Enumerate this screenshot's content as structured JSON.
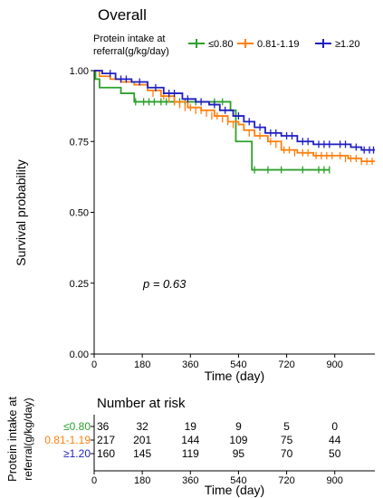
{
  "chart_data": {
    "type": "line",
    "title": "Overall",
    "legend": {
      "title_line1": "Protein intake at",
      "title_line2": "referral(g/kg/day)",
      "placement": "top"
    },
    "xlabel": "Time (day)",
    "ylabel": "Survival probability",
    "xlim": [
      0,
      1050
    ],
    "ylim": [
      0,
      1
    ],
    "xticks": [
      "0",
      "180",
      "360",
      "540",
      "720",
      "900"
    ],
    "yticks": [
      "0.00",
      "0.25",
      "0.50",
      "0.75",
      "1.00"
    ],
    "annotation": "p = 0.63",
    "series": [
      {
        "name": "≤0.80",
        "color": "#2ca02c",
        "steps": [
          [
            0,
            1.0
          ],
          [
            5,
            0.97
          ],
          [
            20,
            0.94
          ],
          [
            100,
            0.92
          ],
          [
            150,
            0.89
          ],
          [
            510,
            0.86
          ],
          [
            530,
            0.75
          ],
          [
            590,
            0.65
          ],
          [
            880,
            0.65
          ]
        ],
        "censors": [
          [
            155,
            0.89
          ],
          [
            185,
            0.89
          ],
          [
            205,
            0.89
          ],
          [
            225,
            0.89
          ],
          [
            250,
            0.89
          ],
          [
            270,
            0.89
          ],
          [
            300,
            0.89
          ],
          [
            320,
            0.89
          ],
          [
            340,
            0.89
          ],
          [
            380,
            0.89
          ],
          [
            450,
            0.89
          ],
          [
            480,
            0.89
          ],
          [
            600,
            0.65
          ],
          [
            650,
            0.65
          ],
          [
            700,
            0.65
          ],
          [
            780,
            0.65
          ],
          [
            840,
            0.65
          ],
          [
            860,
            0.65
          ],
          [
            880,
            0.65
          ]
        ]
      },
      {
        "name": "0.81-1.19",
        "color": "#ff7f0e",
        "steps": [
          [
            0,
            1.0
          ],
          [
            20,
            0.98
          ],
          [
            60,
            0.97
          ],
          [
            100,
            0.96
          ],
          [
            150,
            0.95
          ],
          [
            200,
            0.93
          ],
          [
            250,
            0.91
          ],
          [
            300,
            0.89
          ],
          [
            350,
            0.87
          ],
          [
            400,
            0.86
          ],
          [
            450,
            0.84
          ],
          [
            500,
            0.82
          ],
          [
            540,
            0.81
          ],
          [
            560,
            0.79
          ],
          [
            600,
            0.77
          ],
          [
            650,
            0.75
          ],
          [
            700,
            0.72
          ],
          [
            760,
            0.71
          ],
          [
            820,
            0.7
          ],
          [
            900,
            0.7
          ],
          [
            950,
            0.69
          ],
          [
            1000,
            0.68
          ],
          [
            1050,
            0.68
          ]
        ],
        "censors": [
          [
            220,
            0.92
          ],
          [
            260,
            0.91
          ],
          [
            280,
            0.9
          ],
          [
            300,
            0.89
          ],
          [
            320,
            0.88
          ],
          [
            340,
            0.87
          ],
          [
            360,
            0.87
          ],
          [
            380,
            0.86
          ],
          [
            400,
            0.86
          ],
          [
            420,
            0.85
          ],
          [
            440,
            0.84
          ],
          [
            460,
            0.84
          ],
          [
            480,
            0.83
          ],
          [
            500,
            0.82
          ],
          [
            520,
            0.81
          ],
          [
            580,
            0.78
          ],
          [
            620,
            0.77
          ],
          [
            660,
            0.75
          ],
          [
            680,
            0.74
          ],
          [
            710,
            0.72
          ],
          [
            730,
            0.72
          ],
          [
            750,
            0.71
          ],
          [
            780,
            0.71
          ],
          [
            800,
            0.71
          ],
          [
            830,
            0.7
          ],
          [
            850,
            0.7
          ],
          [
            870,
            0.7
          ],
          [
            890,
            0.7
          ],
          [
            920,
            0.7
          ],
          [
            940,
            0.69
          ],
          [
            960,
            0.69
          ],
          [
            980,
            0.69
          ],
          [
            1000,
            0.68
          ],
          [
            1020,
            0.68
          ],
          [
            1040,
            0.68
          ]
        ]
      },
      {
        "name": "≥1.20",
        "color": "#1f1fbf",
        "steps": [
          [
            0,
            1.0
          ],
          [
            30,
            0.99
          ],
          [
            80,
            0.97
          ],
          [
            140,
            0.96
          ],
          [
            200,
            0.94
          ],
          [
            260,
            0.92
          ],
          [
            330,
            0.9
          ],
          [
            380,
            0.89
          ],
          [
            430,
            0.88
          ],
          [
            470,
            0.86
          ],
          [
            520,
            0.84
          ],
          [
            560,
            0.82
          ],
          [
            600,
            0.8
          ],
          [
            640,
            0.78
          ],
          [
            700,
            0.77
          ],
          [
            760,
            0.75
          ],
          [
            820,
            0.74
          ],
          [
            900,
            0.74
          ],
          [
            960,
            0.73
          ],
          [
            1000,
            0.72
          ],
          [
            1050,
            0.72
          ]
        ],
        "censors": [
          [
            60,
            0.99
          ],
          [
            100,
            0.97
          ],
          [
            120,
            0.97
          ],
          [
            170,
            0.96
          ],
          [
            230,
            0.94
          ],
          [
            280,
            0.92
          ],
          [
            300,
            0.92
          ],
          [
            350,
            0.9
          ],
          [
            400,
            0.89
          ],
          [
            450,
            0.88
          ],
          [
            490,
            0.86
          ],
          [
            540,
            0.84
          ],
          [
            580,
            0.82
          ],
          [
            620,
            0.8
          ],
          [
            660,
            0.78
          ],
          [
            680,
            0.78
          ],
          [
            720,
            0.77
          ],
          [
            740,
            0.77
          ],
          [
            780,
            0.75
          ],
          [
            800,
            0.75
          ],
          [
            840,
            0.74
          ],
          [
            860,
            0.74
          ],
          [
            880,
            0.74
          ],
          [
            920,
            0.74
          ],
          [
            940,
            0.74
          ],
          [
            980,
            0.73
          ],
          [
            1010,
            0.72
          ],
          [
            1030,
            0.72
          ],
          [
            1045,
            0.72
          ]
        ]
      }
    ],
    "risk_table": {
      "title": "Number at risk",
      "ylabel_line1": "Protein intake at",
      "ylabel_line2": "referral(g/kg/day)",
      "xlabel": "Time (day)",
      "times": [
        0,
        180,
        360,
        540,
        720,
        900
      ],
      "rows": [
        {
          "label": "≤0.80",
          "color": "#2ca02c",
          "values": [
            "36",
            "32",
            "19",
            "9",
            "5",
            "0"
          ]
        },
        {
          "label": "0.81-1.19",
          "color": "#ff7f0e",
          "values": [
            "217",
            "201",
            "144",
            "109",
            "75",
            "44"
          ]
        },
        {
          "label": "≥1.20",
          "color": "#1f1fbf",
          "values": [
            "160",
            "145",
            "119",
            "95",
            "70",
            "50"
          ]
        }
      ]
    }
  }
}
